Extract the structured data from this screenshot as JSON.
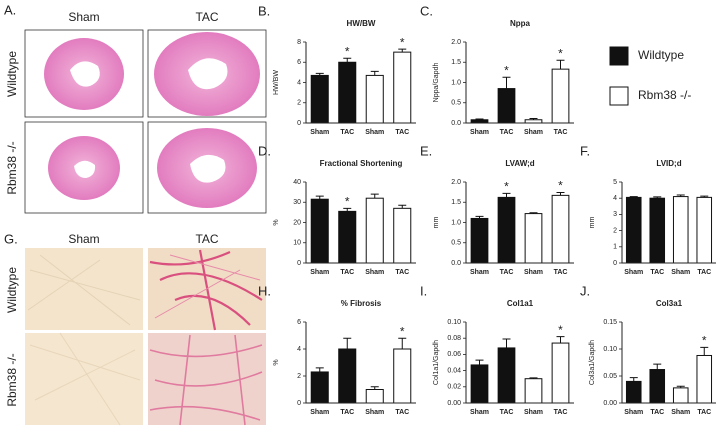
{
  "histology": [
    {
      "label": "A.",
      "columns": [
        "Sham",
        "TAC"
      ],
      "rows": [
        "Wildtype",
        "Rbm38 -/-"
      ]
    },
    {
      "label": "G.",
      "columns": [
        "Sham",
        "TAC"
      ],
      "rows": [
        "Wildtype",
        "Rbm38 -/-"
      ]
    }
  ],
  "legend": {
    "entries": [
      {
        "name": "Wildtype",
        "color": "#111111"
      },
      {
        "name": "Rbm38 -/-",
        "color": "#ffffff"
      }
    ]
  },
  "chart_data": [
    {
      "type": "bar",
      "panel_label": "B.",
      "title": "HW/BW",
      "ylabel": "HW/BW",
      "categories": [
        "Sham",
        "TAC",
        "Sham",
        "TAC"
      ],
      "series": [
        {
          "values": [
            4.7,
            6.0,
            null,
            null
          ],
          "errors": [
            0.2,
            0.4,
            null,
            null
          ],
          "annotations": [
            null,
            "*",
            null,
            null
          ]
        },
        {
          "values": [
            null,
            null,
            4.7,
            7.0
          ],
          "errors": [
            null,
            null,
            0.4,
            0.3
          ],
          "annotations": [
            null,
            null,
            null,
            "*"
          ]
        }
      ],
      "ylim": [
        0,
        8
      ],
      "yticks": [
        0,
        2,
        4,
        6,
        8
      ]
    },
    {
      "type": "bar",
      "panel_label": "C.",
      "title": "Nppa",
      "ylabel": "Nppa/Gapdh",
      "categories": [
        "Sham",
        "TAC",
        "Sham",
        "TAC"
      ],
      "series": [
        {
          "values": [
            0.08,
            0.85,
            null,
            null
          ],
          "errors": [
            0.02,
            0.28,
            null,
            null
          ],
          "annotations": [
            null,
            "*",
            null,
            null
          ]
        },
        {
          "values": [
            null,
            null,
            0.08,
            1.33
          ],
          "errors": [
            null,
            null,
            0.03,
            0.22
          ],
          "annotations": [
            null,
            null,
            null,
            "*"
          ]
        }
      ],
      "ylim": [
        0,
        2
      ],
      "yticks": [
        {
          "value": 0,
          "label": "0.0"
        },
        {
          "value": 0.5,
          "label": "0.5"
        },
        {
          "value": 1,
          "label": "1.0"
        },
        {
          "value": 1.5,
          "label": "1.5"
        },
        {
          "value": 2,
          "label": "2.0"
        }
      ]
    },
    {
      "type": "bar",
      "panel_label": "D.",
      "title": "Fractional Shortening",
      "ylabel": "%",
      "categories": [
        "Sham",
        "TAC",
        "Sham",
        "TAC"
      ],
      "series": [
        {
          "values": [
            31.5,
            25.5,
            null,
            null
          ],
          "errors": [
            1.5,
            1.5,
            null,
            null
          ],
          "annotations": [
            null,
            "*",
            null,
            null
          ]
        },
        {
          "values": [
            null,
            null,
            32,
            27
          ],
          "errors": [
            null,
            null,
            2,
            1.5
          ],
          "annotations": [
            null,
            null,
            null,
            null
          ]
        }
      ],
      "ylim": [
        0,
        40
      ],
      "yticks": [
        0,
        10,
        20,
        30,
        40
      ]
    },
    {
      "type": "bar",
      "panel_label": "E.",
      "title": "LVAW;d",
      "ylabel": "mm",
      "categories": [
        "Sham",
        "TAC",
        "Sham",
        "TAC"
      ],
      "series": [
        {
          "values": [
            1.1,
            1.62,
            null,
            null
          ],
          "errors": [
            0.05,
            0.1,
            null,
            null
          ],
          "annotations": [
            null,
            "*",
            null,
            null
          ]
        },
        {
          "values": [
            null,
            null,
            1.22,
            1.67
          ],
          "errors": [
            null,
            null,
            0.02,
            0.07
          ],
          "annotations": [
            null,
            null,
            null,
            "*"
          ]
        }
      ],
      "ylim": [
        0,
        2
      ],
      "yticks": [
        {
          "value": 0,
          "label": "0.0"
        },
        {
          "value": 0.5,
          "label": "0.5"
        },
        {
          "value": 1,
          "label": "1.0"
        },
        {
          "value": 1.5,
          "label": "1.5"
        },
        {
          "value": 2,
          "label": "2.0"
        }
      ]
    },
    {
      "type": "bar",
      "panel_label": "F.",
      "title": "LVID;d",
      "ylabel": "mm",
      "categories": [
        "Sham",
        "TAC",
        "Sham",
        "TAC"
      ],
      "series": [
        {
          "values": [
            4.05,
            4.0,
            null,
            null
          ],
          "errors": [
            0.05,
            0.08,
            null,
            null
          ],
          "annotations": [
            null,
            null,
            null,
            null
          ]
        },
        {
          "values": [
            null,
            null,
            4.1,
            4.05
          ],
          "errors": [
            null,
            null,
            0.1,
            0.08
          ],
          "annotations": [
            null,
            null,
            null,
            null
          ]
        }
      ],
      "ylim": [
        0,
        5
      ],
      "yticks": [
        0,
        1,
        2,
        3,
        4,
        5
      ]
    },
    {
      "type": "bar",
      "panel_label": "H.",
      "title": "% Fibrosis",
      "ylabel": "%",
      "categories": [
        "Sham",
        "TAC",
        "Sham",
        "TAC"
      ],
      "series": [
        {
          "values": [
            2.3,
            4.0,
            null,
            null
          ],
          "errors": [
            0.3,
            0.8,
            null,
            null
          ],
          "annotations": [
            null,
            null,
            null,
            null
          ]
        },
        {
          "values": [
            null,
            null,
            1.0,
            4.0
          ],
          "errors": [
            null,
            null,
            0.2,
            0.8
          ],
          "annotations": [
            null,
            null,
            null,
            "*"
          ]
        }
      ],
      "ylim": [
        0,
        6
      ],
      "yticks": [
        0,
        2,
        4,
        6
      ]
    },
    {
      "type": "bar",
      "panel_label": "I.",
      "title": "Col1a1",
      "ylabel": "Col1a1/Gapdh",
      "categories": [
        "Sham",
        "TAC",
        "Sham",
        "TAC"
      ],
      "series": [
        {
          "values": [
            0.047,
            0.068,
            null,
            null
          ],
          "errors": [
            0.006,
            0.011,
            null,
            null
          ],
          "annotations": [
            null,
            null,
            null,
            null
          ]
        },
        {
          "values": [
            null,
            null,
            0.03,
            0.074
          ],
          "errors": [
            null,
            null,
            0.001,
            0.008
          ],
          "annotations": [
            null,
            null,
            null,
            "*"
          ]
        }
      ],
      "ylim": [
        0,
        0.1
      ],
      "yticks": [
        {
          "value": 0,
          "label": "0.00"
        },
        {
          "value": 0.02,
          "label": "0.02"
        },
        {
          "value": 0.04,
          "label": "0.04"
        },
        {
          "value": 0.06,
          "label": "0.06"
        },
        {
          "value": 0.08,
          "label": "0.08"
        },
        {
          "value": 0.1,
          "label": "0.10"
        }
      ]
    },
    {
      "type": "bar",
      "panel_label": "J.",
      "title": "Col3a1",
      "ylabel": "Col3a1/Gapdh",
      "categories": [
        "Sham",
        "TAC",
        "Sham",
        "TAC"
      ],
      "series": [
        {
          "values": [
            0.04,
            0.062,
            null,
            null
          ],
          "errors": [
            0.007,
            0.01,
            null,
            null
          ],
          "annotations": [
            null,
            null,
            null,
            null
          ]
        },
        {
          "values": [
            null,
            null,
            0.028,
            0.088
          ],
          "errors": [
            null,
            null,
            0.003,
            0.015
          ],
          "annotations": [
            null,
            null,
            null,
            "*"
          ]
        }
      ],
      "ylim": [
        0,
        0.15
      ],
      "yticks": [
        {
          "value": 0,
          "label": "0.00"
        },
        {
          "value": 0.05,
          "label": "0.05"
        },
        {
          "value": 0.1,
          "label": "0.10"
        },
        {
          "value": 0.15,
          "label": "0.15"
        }
      ]
    }
  ]
}
